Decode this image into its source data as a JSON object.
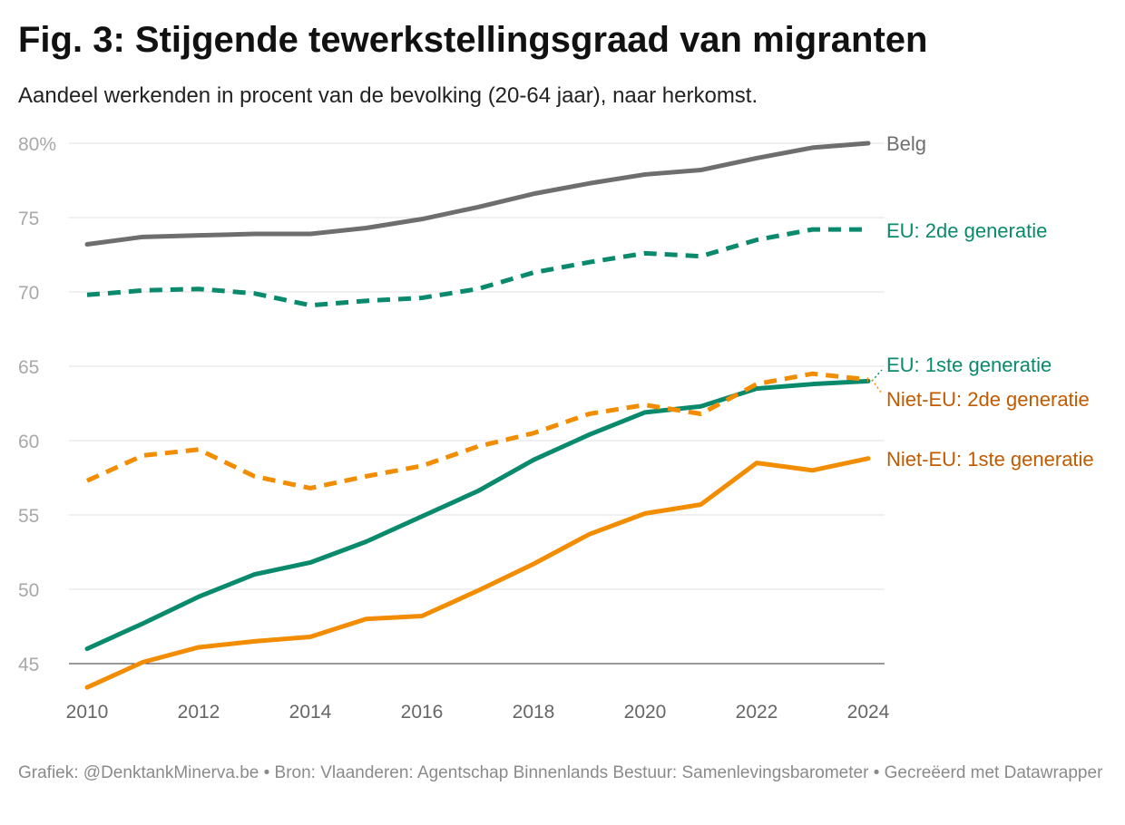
{
  "chart_data": {
    "type": "line",
    "title": "Fig. 3: Stijgende tewerkstellingsgraad van migranten",
    "subtitle": "Aandeel werkenden in procent van de bevolking (20-64 jaar), naar herkomst.",
    "footer": "Grafiek: @DenktankMinerva.be • Bron: Vlaanderen: Agentschap Binnenlands Bestuur: Samenlevingsbarometer • Gecreëerd met Datawrapper",
    "x": [
      2010,
      2011,
      2012,
      2013,
      2014,
      2015,
      2016,
      2017,
      2018,
      2019,
      2020,
      2021,
      2022,
      2023,
      2024
    ],
    "xticks": [
      "2010",
      "2012",
      "2014",
      "2016",
      "2018",
      "2020",
      "2022",
      "2024"
    ],
    "yticks": [
      "80%",
      "75",
      "70",
      "65",
      "60",
      "55",
      "50",
      "45"
    ],
    "ylim": [
      45,
      80
    ],
    "grid": true,
    "legend": "direct labels at line ends (right)",
    "series": [
      {
        "name": "Belg",
        "color": "#6e6e6e",
        "label_color": "#6e6e6e",
        "dashed": false,
        "values": [
          73.2,
          73.7,
          73.8,
          73.9,
          73.9,
          74.3,
          74.9,
          75.7,
          76.6,
          77.3,
          77.9,
          78.2,
          79.0,
          79.7,
          80.0
        ]
      },
      {
        "name": "EU: 2de generatie",
        "color": "#0a8a6c",
        "label_color": "#0a8a6c",
        "dashed": true,
        "values": [
          69.8,
          70.1,
          70.2,
          69.9,
          69.1,
          69.4,
          69.6,
          70.2,
          71.3,
          72.0,
          72.6,
          72.4,
          73.5,
          74.2,
          74.2
        ]
      },
      {
        "name": "EU: 1ste generatie",
        "color": "#0a8a6c",
        "label_color": "#0a8a6c",
        "dashed": false,
        "values": [
          46.0,
          47.7,
          49.5,
          51.0,
          51.8,
          53.2,
          54.9,
          56.6,
          58.7,
          60.4,
          61.9,
          62.3,
          63.5,
          63.8,
          64.0
        ]
      },
      {
        "name": "Niet-EU: 2de generatie",
        "color": "#f28c00",
        "label_color": "#c25a00",
        "dashed": true,
        "values": [
          57.3,
          59.0,
          59.4,
          57.6,
          56.8,
          57.6,
          58.3,
          59.6,
          60.5,
          61.8,
          62.4,
          61.8,
          63.8,
          64.5,
          64.1
        ]
      },
      {
        "name": "Niet-EU: 1ste generatie",
        "color": "#f28c00",
        "label_color": "#c25a00",
        "dashed": false,
        "values": [
          43.4,
          45.1,
          46.1,
          46.5,
          46.8,
          48.0,
          48.2,
          49.9,
          51.7,
          53.7,
          55.1,
          55.7,
          58.5,
          58.0,
          58.8
        ]
      }
    ]
  }
}
